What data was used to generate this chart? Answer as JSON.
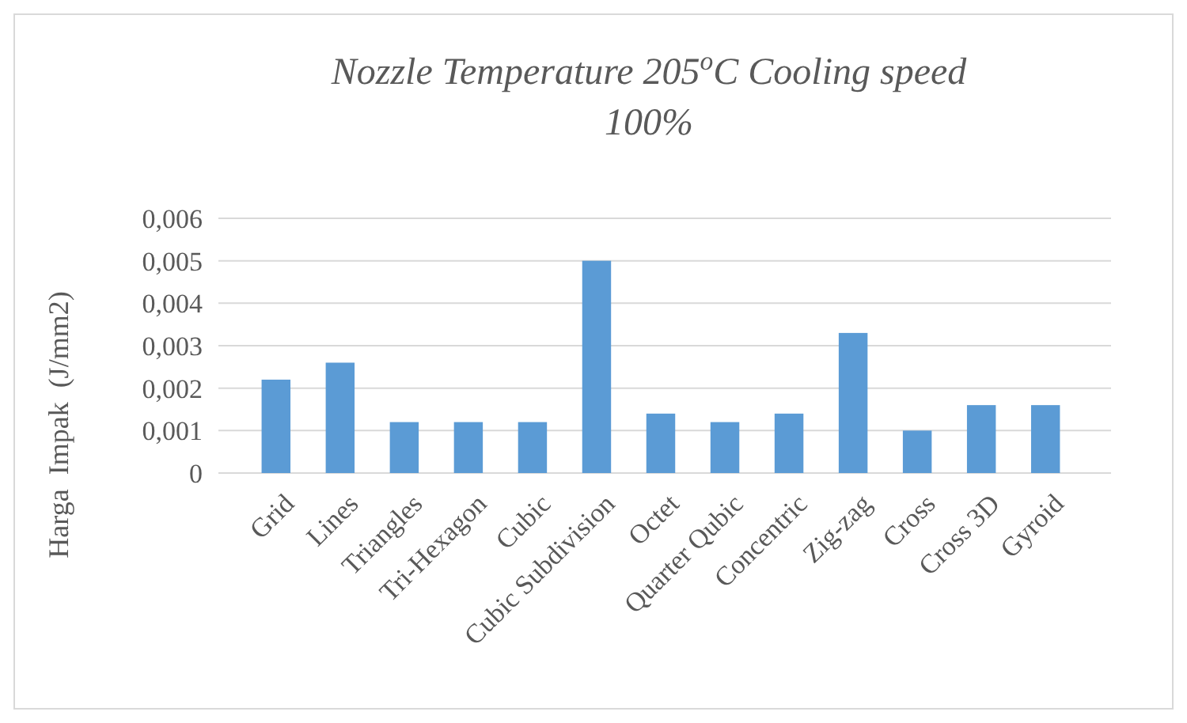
{
  "chart_data": {
    "type": "bar",
    "title": "Nozzle Temperature 205$^{o}$C Cooling speed 100%",
    "ylabel": "Harga  Impak  (J/mm2)",
    "categories": [
      "Grid",
      "Lines",
      "Triangles",
      "Tri-Hexagon",
      "Cubic",
      "Cubic Subdivision",
      "Octet",
      "Quarter Qubic",
      "Concentric",
      "Zig-zag",
      "Cross",
      "Cross 3D",
      "Gyroid"
    ],
    "values": [
      0.0022,
      0.0026,
      0.0012,
      0.0012,
      0.0012,
      0.005,
      0.0014,
      0.0012,
      0.0014,
      0.0033,
      0.001,
      0.0016,
      0.0016
    ],
    "color": "#5b9bd5",
    "ylim": [
      0,
      0.006
    ],
    "yticks": [
      0,
      {
        "value": 0.001,
        "label": "0,001"
      },
      {
        "value": 0.002,
        "label": "0,002"
      },
      {
        "value": 0.003,
        "label": "0,003"
      },
      {
        "value": 0.004,
        "label": "0,004"
      },
      {
        "value": 0.005,
        "label": "0,005"
      },
      {
        "value": 0.006,
        "label": "0,006"
      }
    ],
    "grid": "y"
  }
}
